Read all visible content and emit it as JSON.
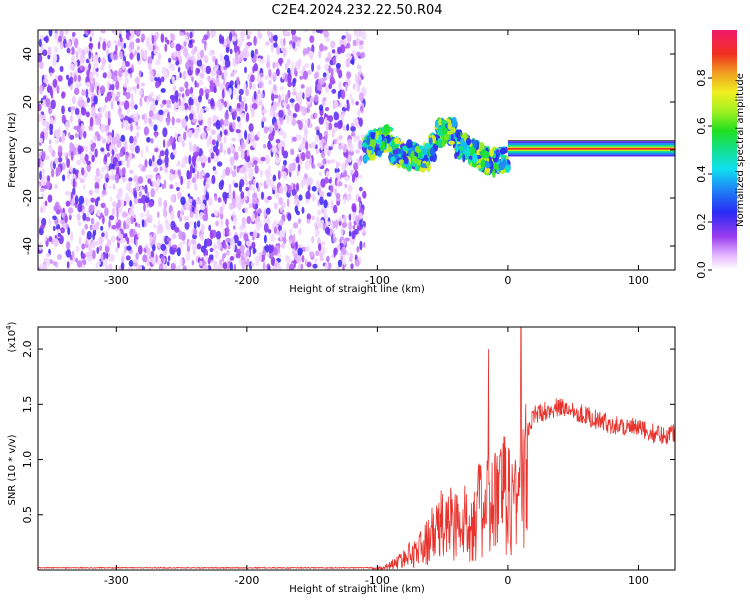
{
  "title": "C2E4.2024.232.22.50.R04",
  "colors": {
    "line": "#e8322c",
    "axis": "#000000",
    "frame": "#000000"
  },
  "chart_data": [
    {
      "type": "heatmap",
      "xlabel": "Height of straight line (km)",
      "ylabel": "Frequency (Hz)",
      "xlim": [
        -360,
        128
      ],
      "ylim": [
        -50,
        50
      ],
      "xticks": [
        -300,
        -200,
        -100,
        0,
        100
      ],
      "xtick_labels": [
        "-300",
        "-200",
        "-100",
        "0",
        "100"
      ],
      "yticks": [
        -40,
        -20,
        0,
        20,
        40
      ],
      "ytick_labels": [
        "-40",
        "-20",
        "0",
        "20",
        "40"
      ],
      "colorbar": {
        "label": "Normalized spectral amplitude",
        "range": [
          0,
          1
        ],
        "ticks": [
          0.0,
          0.2,
          0.4,
          0.6,
          0.8
        ],
        "tick_labels": [
          "0.0",
          "0.2",
          "0.4",
          "0.6",
          "0.8"
        ],
        "colormap": "rainbow"
      },
      "regions": {
        "noise_extent_km": [
          -360,
          -110
        ],
        "signal_start_km": -110,
        "clean_tone_start_km": 0,
        "clean_tone_frequency_hz": 0.5
      }
    },
    {
      "type": "line",
      "xlabel": "Height of straight line (km)",
      "ylabel": "SNR (10 * v/v)",
      "yscale_note": "(x10",
      "yscale_exponent": "4",
      "xlim": [
        -360,
        128
      ],
      "ylim": [
        0,
        2.2
      ],
      "xticks": [
        -300,
        -200,
        -100,
        0,
        100
      ],
      "xtick_labels": [
        "-300",
        "-200",
        "-100",
        "0",
        "100"
      ],
      "yticks": [
        0.5,
        1.0,
        1.5,
        2.0
      ],
      "ytick_labels": [
        "0.5",
        "1.0",
        "1.5",
        "2.0"
      ],
      "series": [
        {
          "envelope_x": [
            -360,
            -105,
            -95,
            -85,
            -75,
            -65,
            -55,
            -45,
            -35,
            -25,
            -15,
            -10,
            -5,
            0,
            5,
            10,
            15,
            20,
            30,
            40,
            50,
            60,
            70,
            80,
            90,
            100,
            110,
            120,
            128
          ],
          "envelope_y": [
            0.02,
            0.02,
            0.03,
            0.1,
            0.2,
            0.3,
            0.5,
            0.65,
            0.55,
            0.75,
            0.8,
            0.9,
            0.95,
            0.95,
            0.9,
            1.05,
            1.25,
            1.4,
            1.45,
            1.47,
            1.45,
            1.4,
            1.35,
            1.32,
            1.3,
            1.28,
            1.24,
            1.22,
            1.25
          ],
          "spikes_x": [
            -15,
            10
          ],
          "spikes_y": [
            2.0,
            2.2
          ]
        }
      ]
    }
  ]
}
